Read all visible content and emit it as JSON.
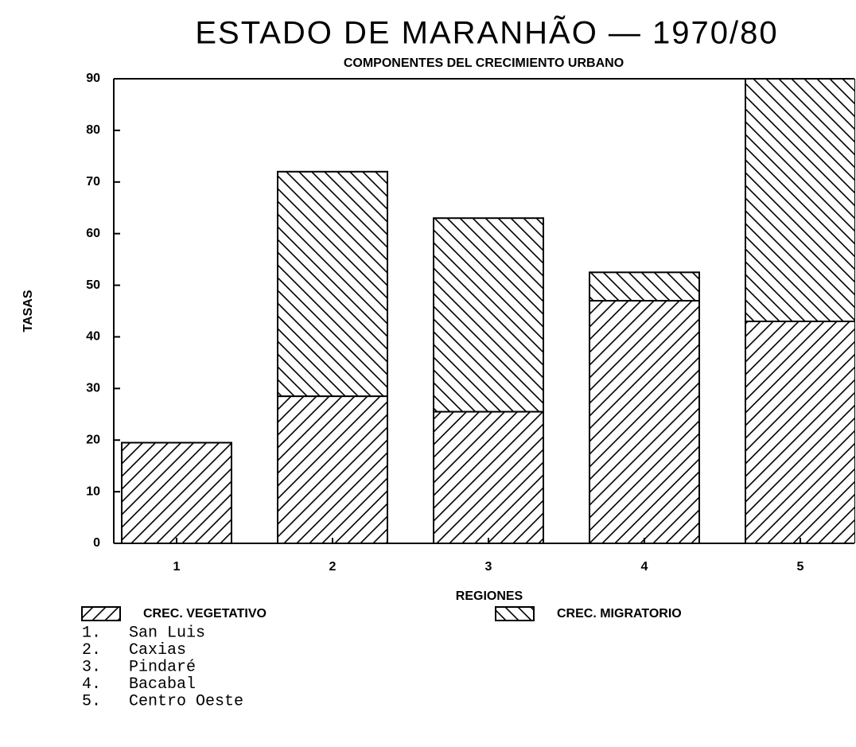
{
  "chart_data": {
    "type": "stacked_bar",
    "title": "ESTADO DE MARANHÃO — 1970/80",
    "subtitle": "COMPONENTES DEL CRECIMIENTO URBANO",
    "y_label": "TASAS",
    "x_label": "REGIONES",
    "categories": [
      "1",
      "2",
      "3",
      "4",
      "5"
    ],
    "series": [
      {
        "name": "CREC. VEGETATIVO",
        "color": "#000000",
        "pattern": "forward-hatch",
        "values": [
          19.5,
          28.5,
          25.5,
          47,
          43
        ]
      },
      {
        "name": "CREC. MIGRATORIO",
        "color": "#000000",
        "pattern": "back-hatch",
        "values": [
          0,
          43.5,
          37.5,
          5.5,
          47
        ]
      }
    ],
    "ylim": [
      0,
      90
    ],
    "yticks": [
      0,
      10,
      20,
      30,
      40,
      50,
      60,
      70,
      80,
      90
    ],
    "grid": false,
    "notes": [
      {
        "label": "1.",
        "name": "San Luis"
      },
      {
        "label": "2.",
        "name": "Caxias"
      },
      {
        "label": "3.",
        "name": "Pindaré"
      },
      {
        "label": "4.",
        "name": "Bacabal"
      },
      {
        "label": "5.",
        "name": "Centro Oeste"
      }
    ]
  }
}
